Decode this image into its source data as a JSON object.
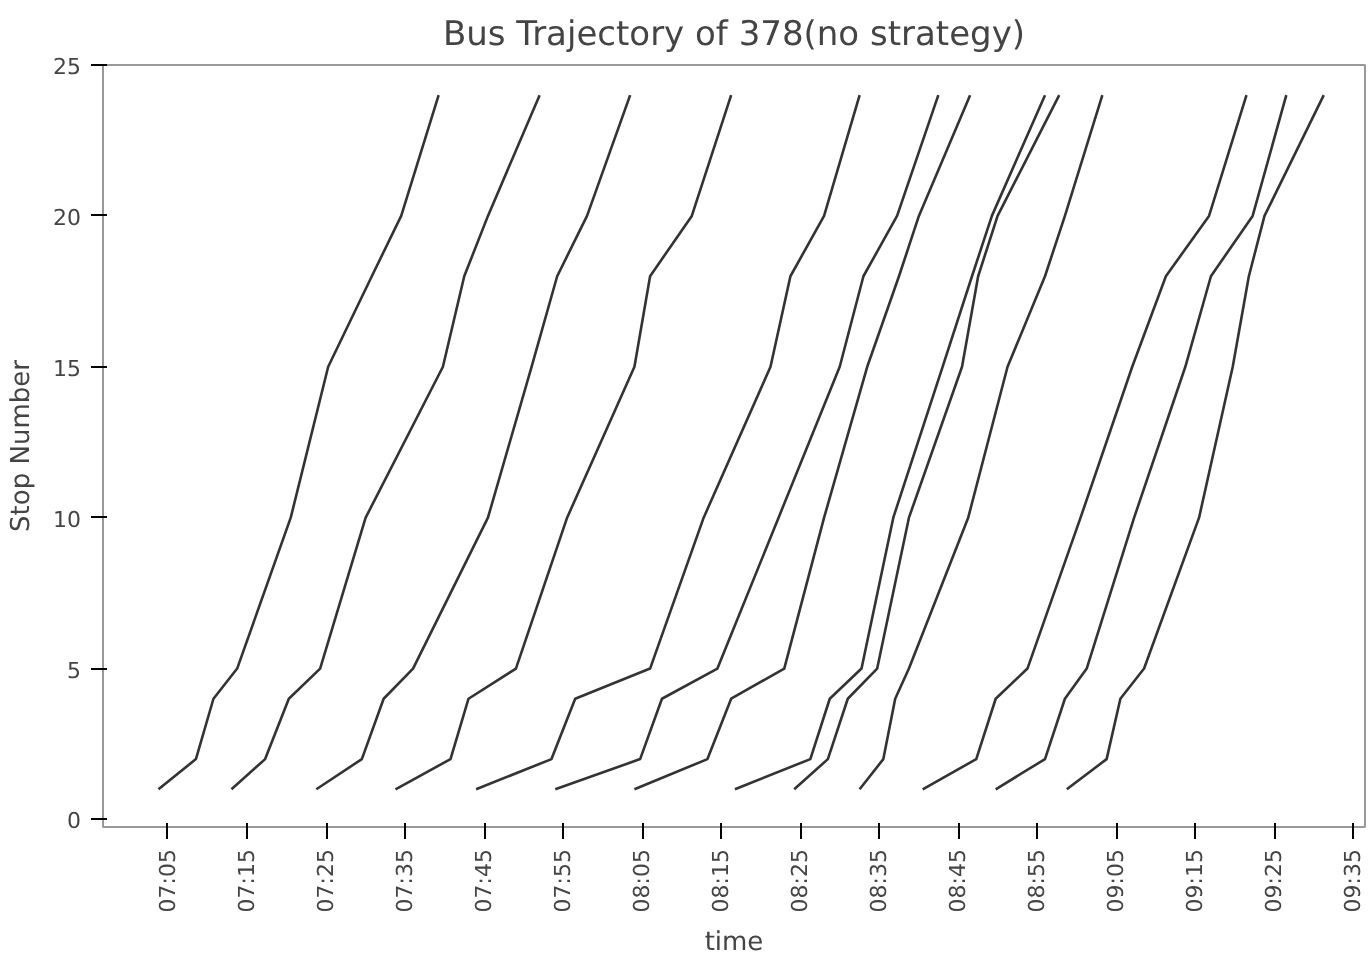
{
  "chart_data": {
    "type": "line",
    "title": "Bus Trajectory of 378(no strategy)",
    "xlabel": "time",
    "ylabel": "Stop Number",
    "xlim": [
      6.946,
      9.608
    ],
    "ylim": [
      -0.25,
      25
    ],
    "xticks": [
      {
        "value": 7.083,
        "label": "07:05"
      },
      {
        "value": 7.25,
        "label": "07:15"
      },
      {
        "value": 7.417,
        "label": "07:25"
      },
      {
        "value": 7.583,
        "label": "07:35"
      },
      {
        "value": 7.75,
        "label": "07:45"
      },
      {
        "value": 7.917,
        "label": "07:55"
      },
      {
        "value": 8.083,
        "label": "08:05"
      },
      {
        "value": 8.25,
        "label": "08:15"
      },
      {
        "value": 8.417,
        "label": "08:25"
      },
      {
        "value": 8.583,
        "label": "08:35"
      },
      {
        "value": 8.75,
        "label": "08:45"
      },
      {
        "value": 8.917,
        "label": "08:55"
      },
      {
        "value": 9.083,
        "label": "09:05"
      },
      {
        "value": 9.25,
        "label": "09:15"
      },
      {
        "value": 9.417,
        "label": "09:25"
      },
      {
        "value": 9.583,
        "label": "09:35"
      }
    ],
    "yticks": [
      0,
      5,
      10,
      15,
      20,
      25
    ],
    "grid": false,
    "marker": "none",
    "line_style": "solid",
    "series": [
      {
        "color": "#333333",
        "x": [
          7.063,
          7.142,
          7.179,
          7.229,
          7.342,
          7.421,
          7.513,
          7.575,
          7.654
        ],
        "values": [
          1,
          2,
          4,
          5,
          10,
          15,
          18,
          20,
          24
        ]
      },
      {
        "color": "#333333",
        "x": [
          7.217,
          7.288,
          7.338,
          7.404,
          7.5,
          7.663,
          7.708,
          7.758,
          7.867
        ],
        "values": [
          1,
          2,
          4,
          5,
          10,
          15,
          18,
          20,
          24
        ]
      },
      {
        "color": "#333333",
        "x": [
          7.396,
          7.492,
          7.538,
          7.6,
          7.758,
          7.85,
          7.904,
          7.967,
          8.058
        ],
        "values": [
          1,
          2,
          4,
          5,
          10,
          15,
          18,
          20,
          24
        ]
      },
      {
        "color": "#333333",
        "x": [
          7.563,
          7.679,
          7.717,
          7.817,
          7.925,
          8.067,
          8.1,
          8.188,
          8.271
        ],
        "values": [
          1,
          2,
          4,
          5,
          10,
          15,
          18,
          20,
          24
        ]
      },
      {
        "color": "#333333",
        "x": [
          7.733,
          7.892,
          7.942,
          8.1,
          8.213,
          8.354,
          8.396,
          8.467,
          8.542
        ],
        "values": [
          1,
          2,
          4,
          5,
          10,
          15,
          18,
          20,
          24
        ]
      },
      {
        "color": "#333333",
        "x": [
          7.9,
          8.079,
          8.125,
          8.242,
          8.371,
          8.5,
          8.55,
          8.621,
          8.708
        ],
        "values": [
          1,
          2,
          4,
          5,
          10,
          15,
          18,
          20,
          24
        ]
      },
      {
        "color": "#333333",
        "x": [
          8.067,
          8.221,
          8.271,
          8.383,
          8.467,
          8.558,
          8.625,
          8.667,
          8.775
        ],
        "values": [
          1,
          2,
          4,
          5,
          10,
          15,
          18,
          20,
          24
        ]
      },
      {
        "color": "#333333",
        "x": [
          8.279,
          8.438,
          8.479,
          8.546,
          8.613,
          8.717,
          8.779,
          8.821,
          8.933
        ],
        "values": [
          1,
          2,
          4,
          5,
          10,
          15,
          18,
          20,
          24
        ]
      },
      {
        "color": "#333333",
        "x": [
          8.404,
          8.475,
          8.517,
          8.579,
          8.646,
          8.758,
          8.792,
          8.833,
          8.963
        ],
        "values": [
          1,
          2,
          4,
          5,
          10,
          15,
          18,
          20,
          24
        ]
      },
      {
        "color": "#333333",
        "x": [
          8.542,
          8.592,
          8.617,
          8.646,
          8.771,
          8.854,
          8.933,
          8.975,
          9.054
        ],
        "values": [
          1,
          2,
          4,
          5,
          10,
          15,
          18,
          20,
          24
        ]
      },
      {
        "color": "#333333",
        "x": [
          8.675,
          8.788,
          8.829,
          8.896,
          9.008,
          9.117,
          9.188,
          9.279,
          9.358
        ],
        "values": [
          1,
          2,
          4,
          5,
          10,
          15,
          18,
          20,
          24
        ]
      },
      {
        "color": "#333333",
        "x": [
          8.829,
          8.933,
          8.975,
          9.021,
          9.121,
          9.229,
          9.283,
          9.371,
          9.442
        ],
        "values": [
          1,
          2,
          4,
          5,
          10,
          15,
          18,
          20,
          24
        ]
      },
      {
        "color": "#333333",
        "x": [
          8.979,
          9.063,
          9.092,
          9.142,
          9.258,
          9.329,
          9.363,
          9.396,
          9.521
        ],
        "values": [
          1,
          2,
          4,
          5,
          10,
          15,
          18,
          20,
          24
        ]
      }
    ]
  }
}
